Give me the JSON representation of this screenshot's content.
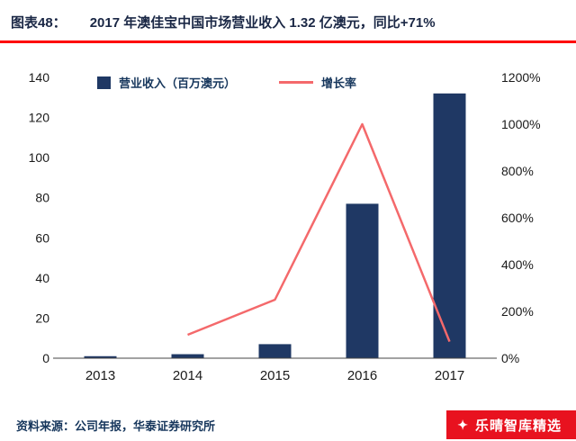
{
  "header": {
    "prefix": "图表48：",
    "title": "2017 年澳佳宝中国市场营业收入 1.32 亿澳元，同比+71%"
  },
  "footer": {
    "source": "资料来源：公司年报，华泰证券研究所",
    "badge": "乐晴智库精选",
    "badge_icon": "✦"
  },
  "chart_data": {
    "type": "bar+line",
    "title": "2017 年澳佳宝中国市场营业收入 1.32 亿澳元，同比+71%",
    "categories": [
      "2013",
      "2014",
      "2015",
      "2016",
      "2017"
    ],
    "series": [
      {
        "name": "营业收入（百万澳元）",
        "type": "bar",
        "axis": "left",
        "values": [
          1,
          2,
          7,
          77,
          132
        ],
        "color": "#1f3864"
      },
      {
        "name": "增长率",
        "type": "line",
        "axis": "right",
        "values": [
          null,
          100,
          250,
          1000,
          71
        ],
        "color": "#f4696b"
      }
    ],
    "left_axis": {
      "min": 0,
      "max": 140,
      "step": 20,
      "format": "number"
    },
    "right_axis": {
      "min": 0,
      "max": 1200,
      "step": 200,
      "format": "percent"
    },
    "legend_position": "top",
    "grid": false
  }
}
